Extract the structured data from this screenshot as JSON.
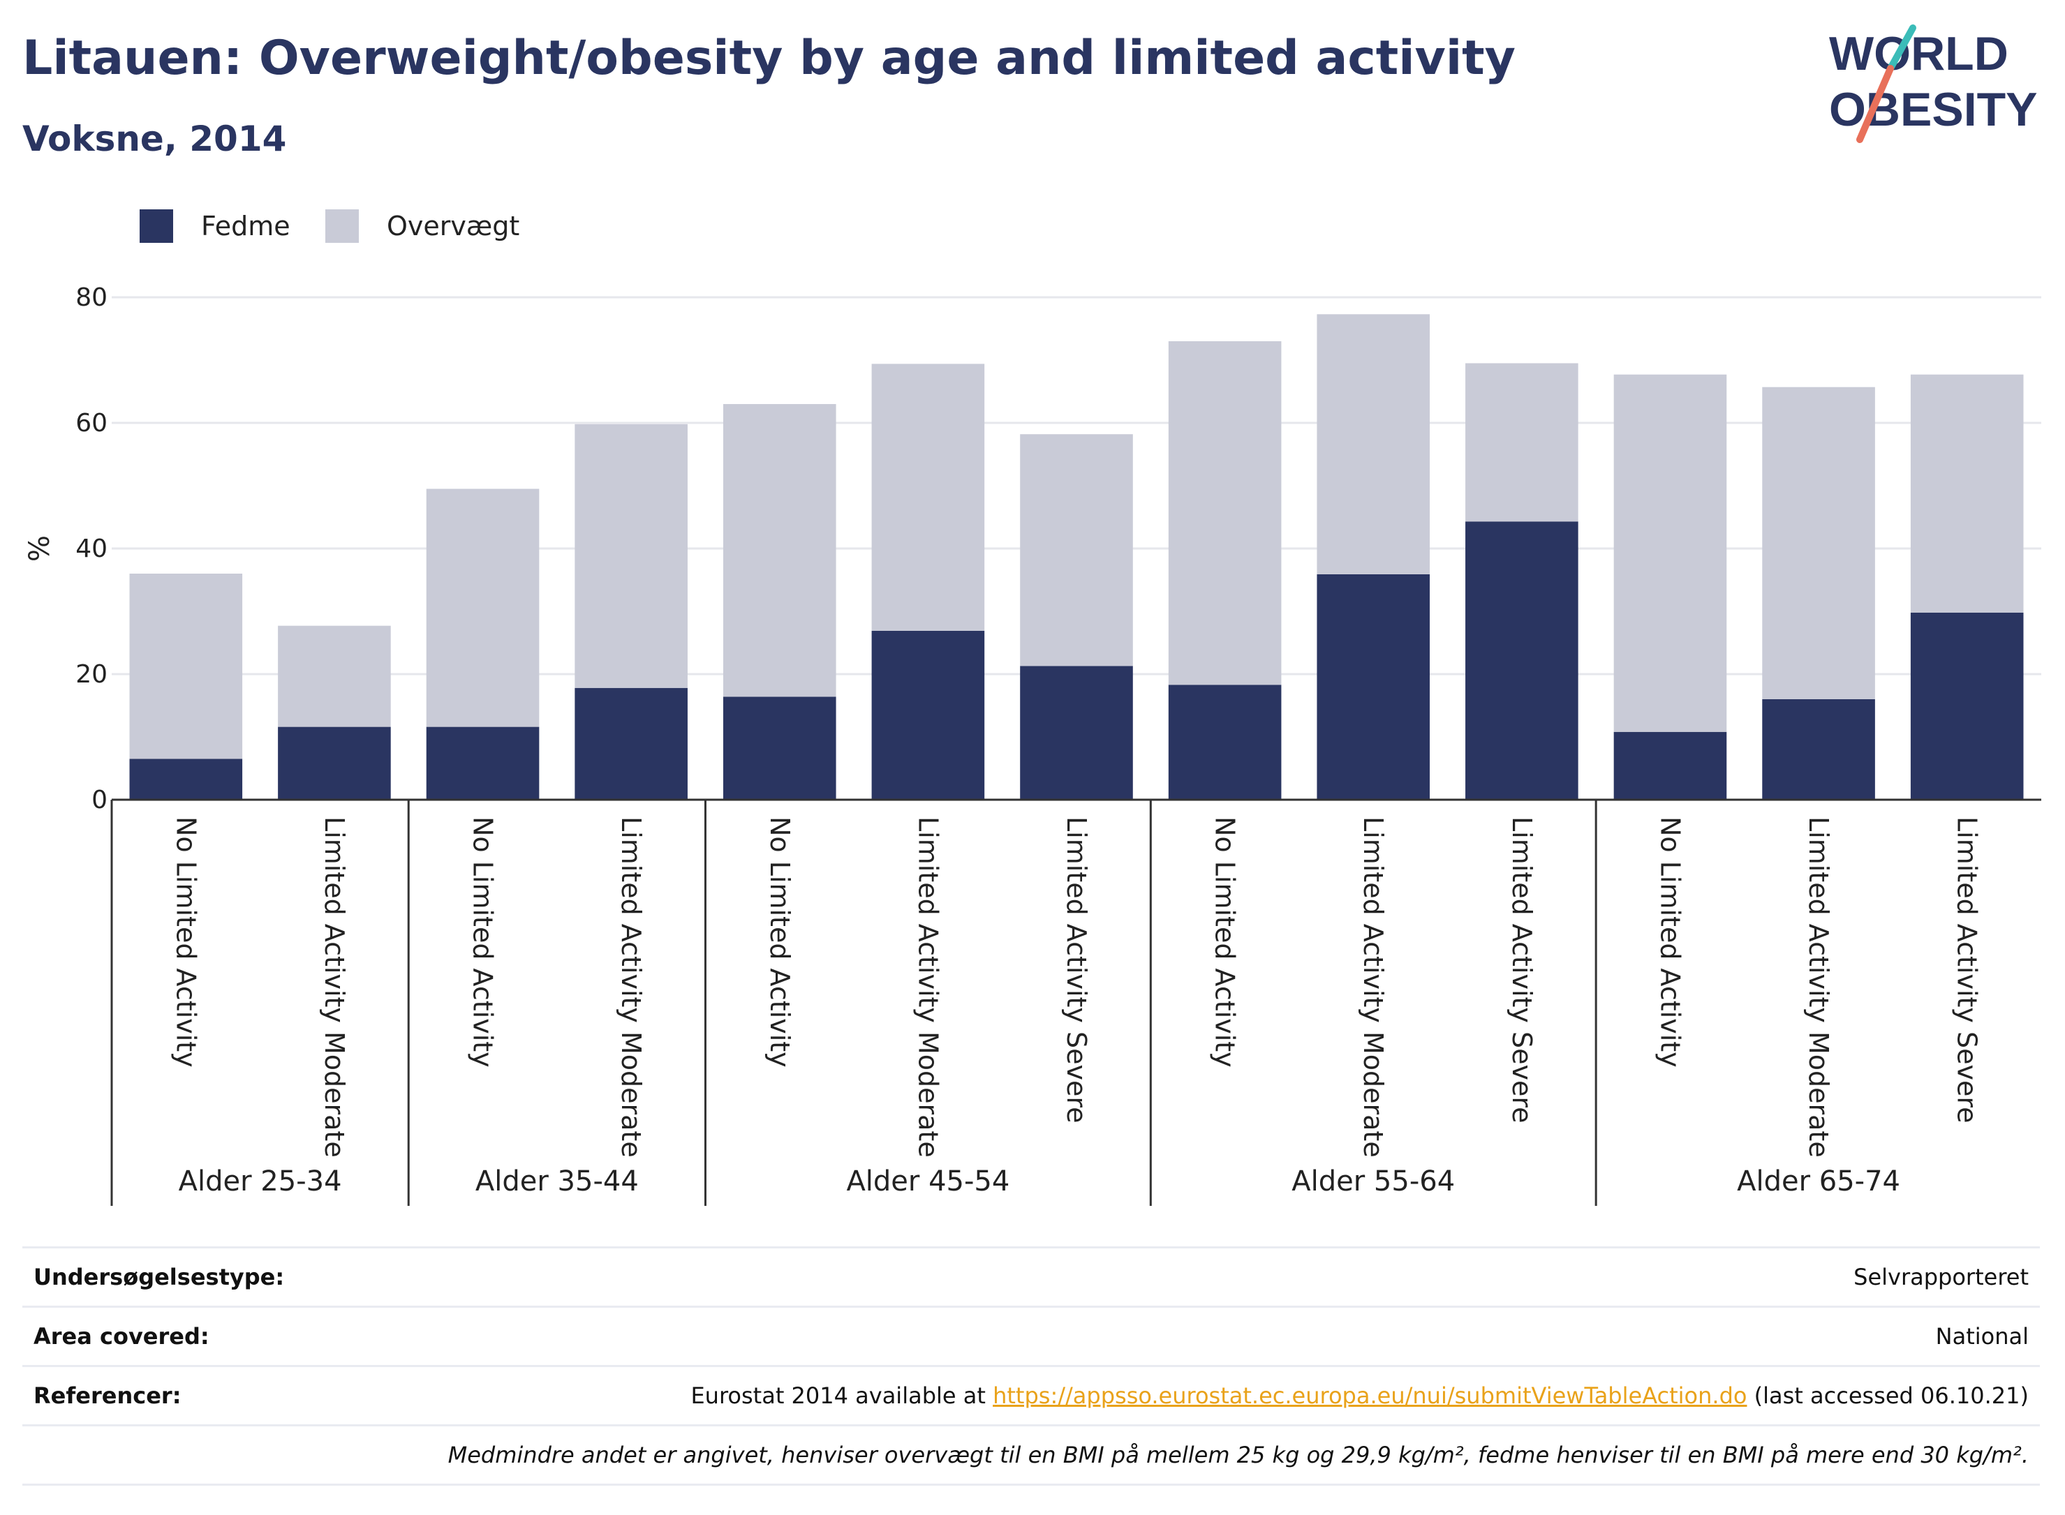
{
  "title": "Litauen: Overweight/obesity by age and limited activity",
  "subtitle": "Voksne, 2014",
  "logo": {
    "line1": "WORLD",
    "line2": "OBESITY",
    "colors": {
      "text": "#2a3561",
      "stroke_top": "#3bbcb8",
      "stroke_bottom": "#e8705a"
    }
  },
  "legend": [
    {
      "label": "Fedme",
      "color": "#2a3561"
    },
    {
      "label": "Overvægt",
      "color": "#c9cbd7"
    }
  ],
  "chart_data": {
    "type": "bar",
    "stacked": true,
    "ylabel": "%",
    "ylim": [
      0,
      80
    ],
    "yticks": [
      0,
      20,
      40,
      60,
      80
    ],
    "grid": true,
    "legend_position": "top-left",
    "groups": [
      {
        "label": "Alder 25-34",
        "categories": [
          "No Limited Activity",
          "Limited Activity Moderate"
        ]
      },
      {
        "label": "Alder 35-44",
        "categories": [
          "No Limited Activity",
          "Limited Activity Moderate"
        ]
      },
      {
        "label": "Alder 45-54",
        "categories": [
          "No Limited Activity",
          "Limited Activity Moderate",
          "Limited Activity Severe"
        ]
      },
      {
        "label": "Alder 55-64",
        "categories": [
          "No Limited Activity",
          "Limited Activity Moderate",
          "Limited Activity Severe"
        ]
      },
      {
        "label": "Alder 65-74",
        "categories": [
          "No Limited Activity",
          "Limited Activity Moderate",
          "Limited Activity Severe"
        ]
      }
    ],
    "series": [
      {
        "name": "Fedme",
        "color": "#2a3561",
        "values": [
          6.5,
          11.6,
          11.6,
          17.8,
          16.4,
          26.9,
          21.3,
          18.3,
          35.9,
          44.3,
          10.8,
          16.0,
          29.8
        ]
      },
      {
        "name": "Overvægt",
        "color": "#c9cbd7",
        "values": [
          29.5,
          16.1,
          37.9,
          42.0,
          46.6,
          42.5,
          36.9,
          54.7,
          41.4,
          25.2,
          56.9,
          49.7,
          37.9
        ]
      }
    ]
  },
  "footer": {
    "survey_type": {
      "label": "Undersøgelsestype:",
      "value": "Selvrapporteret"
    },
    "area": {
      "label": "Area covered:",
      "value": "National"
    },
    "references": {
      "label": "Referencer:",
      "prefix": "Eurostat 2014 available at ",
      "link": "https://appsso.eurostat.ec.europa.eu/nui/submitViewTableAction.do",
      "suffix": " (last accessed 06.10.21)"
    },
    "note": "Medmindre andet er angivet, henviser overvægt til en BMI på mellem 25 kg og 29,9 kg/m², fedme henviser til en BMI på mere end 30 kg/m²."
  }
}
